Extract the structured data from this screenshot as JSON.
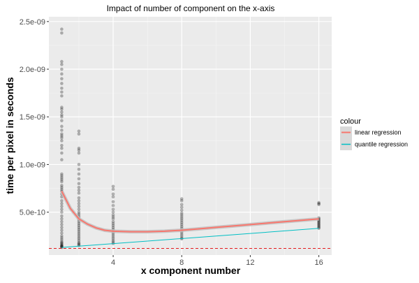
{
  "chart_data": {
    "type": "scatter",
    "title": "Impact of number of component on the x-axis",
    "xlabel": "x component number",
    "ylabel": "time per pixel in seconds",
    "xlim": [
      0.25,
      16.75
    ],
    "ylim": [
      5e-11,
      2.55e-09
    ],
    "x_ticks": [
      4,
      8,
      12,
      16
    ],
    "x_tick_labels": [
      "4",
      "8",
      "12",
      "16"
    ],
    "y_ticks": [
      5e-10,
      1e-09,
      1.5e-09,
      2e-09,
      2.5e-09
    ],
    "y_tick_labels": [
      "5.0e-10",
      "1.0e-09",
      "1.5e-09",
      "2.0e-09",
      "2.5e-09"
    ],
    "grid": true,
    "legend_position": "right",
    "legend_title": "colour",
    "series": [
      {
        "name": "linear regression",
        "type": "smooth-line",
        "color": "#F8766D",
        "x": [
          1,
          1.5,
          2,
          2.5,
          3,
          3.5,
          4,
          5,
          6,
          7,
          8,
          9,
          10,
          11,
          12,
          13,
          14,
          15,
          16
        ],
        "y": [
          7.2e-10,
          5.4e-10,
          4.3e-10,
          3.75e-10,
          3.35e-10,
          3.1e-10,
          3e-10,
          2.95e-10,
          2.95e-10,
          3e-10,
          3.1e-10,
          3.25e-10,
          3.4e-10,
          3.55e-10,
          3.7e-10,
          3.85e-10,
          4e-10,
          4.15e-10,
          4.3e-10
        ]
      },
      {
        "name": "quantile regression",
        "type": "line",
        "color": "#00BFC4",
        "x": [
          1,
          16
        ],
        "y": [
          1.3e-10,
          3.3e-10
        ]
      }
    ],
    "reference_line": {
      "y": 1.2e-10,
      "color": "#E41A1C",
      "style": "dashed"
    },
    "points": [
      {
        "x": 1,
        "y": [
          2.42e-09,
          2.38e-09,
          2.08e-09,
          2.05e-09,
          2e-09,
          1.95e-09,
          1.9e-09,
          1.85e-09,
          1.8e-09,
          1.76e-09,
          1.72e-09,
          1.6e-09,
          1.58e-09,
          1.55e-09,
          1.52e-09,
          1.5e-09,
          1.46e-09,
          1.4e-09,
          1.36e-09,
          1.32e-09,
          1.3e-09,
          1.28e-09,
          1.25e-09,
          1.2e-09,
          1.17e-09,
          1.12e-09,
          1.05e-09,
          9e-10,
          8.8e-10,
          8.6e-10,
          8.4e-10,
          8.2e-10,
          7.8e-10,
          7.6e-10,
          7.4e-10,
          7.2e-10,
          6.9e-10,
          6.6e-10,
          6.2e-10,
          5.9e-10,
          5.6e-10,
          5.3e-10,
          5e-10,
          4.6e-10,
          4.3e-10,
          4e-10,
          3.7e-10,
          3.4e-10,
          3.1e-10,
          2.8e-10,
          2.5e-10,
          2.3e-10,
          2.1e-10,
          1.9e-10,
          1.8e-10,
          1.7e-10,
          1.6e-10,
          1.5e-10,
          1.45e-10,
          1.4e-10,
          1.35e-10,
          1.3e-10
        ]
      },
      {
        "x": 2,
        "y": [
          1.35e-09,
          1.32e-09,
          1.17e-09,
          1.15e-09,
          1.12e-09,
          1e-09,
          9.5e-10,
          9e-10,
          8.5e-10,
          8e-10,
          7.6e-10,
          7.3e-10,
          7e-10,
          6.5e-10,
          6.2e-10,
          5.9e-10,
          5.6e-10,
          5.3e-10,
          5e-10,
          4.8e-10,
          4.6e-10,
          4.4e-10,
          4.2e-10,
          4e-10,
          3.8e-10,
          3.6e-10,
          3.4e-10,
          3.2e-10,
          3e-10,
          2.8e-10,
          2.6e-10,
          2.4e-10,
          2.2e-10,
          2e-10,
          1.8e-10,
          1.7e-10,
          1.6e-10,
          1.5e-10
        ]
      },
      {
        "x": 4,
        "y": [
          7.7e-10,
          7.4e-10,
          6.9e-10,
          6.6e-10,
          6.1e-10,
          5.7e-10,
          5.3e-10,
          5e-10,
          4.7e-10,
          4.5e-10,
          4.3e-10,
          4e-10,
          3.8e-10,
          3.6e-10,
          3.4e-10,
          3.2e-10,
          3e-10,
          2.8e-10,
          2.6e-10,
          2.4e-10,
          2.2e-10,
          2e-10,
          1.85e-10,
          1.7e-10
        ]
      },
      {
        "x": 8,
        "y": [
          6.4e-10,
          6.2e-10,
          5.8e-10,
          5.5e-10,
          5.2e-10,
          4.9e-10,
          4.7e-10,
          4.5e-10,
          4.3e-10,
          4.1e-10,
          3.9e-10,
          3.7e-10,
          3.5e-10,
          3.3e-10,
          3.1e-10,
          2.9e-10,
          2.7e-10,
          2.5e-10,
          2.3e-10,
          2.2e-10
        ]
      },
      {
        "x": 16,
        "y": [
          6e-10,
          5.9e-10,
          5.8e-10,
          4.4e-10,
          4.3e-10,
          4.2e-10,
          4.1e-10,
          4e-10,
          3.9e-10,
          3.8e-10,
          3.7e-10,
          3.6e-10,
          3.5e-10,
          3.4e-10,
          3.3e-10
        ]
      }
    ]
  }
}
